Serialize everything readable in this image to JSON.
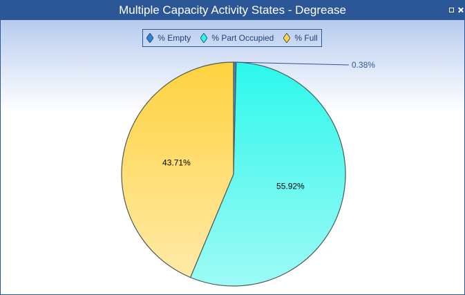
{
  "window": {
    "title": "Multiple Capacity Activity States - Degrease",
    "restore_icon": "restore-icon",
    "close_icon": "close-icon"
  },
  "chart_data": {
    "type": "pie",
    "title": "Multiple Capacity Activity States - Degrease",
    "legend_position": "top-center",
    "slices": [
      {
        "name": "% Empty",
        "value": 0.38,
        "label": "0.38%",
        "color_top": "#2f86c8",
        "color_bottom": "#7ab8e6",
        "label_style": "callout"
      },
      {
        "name": "% Part Occupied",
        "value": 55.92,
        "label": "55.92%",
        "color_top": "#2cf7ec",
        "color_bottom": "#9ffaf6",
        "label_style": "inside"
      },
      {
        "name": "% Full",
        "value": 43.71,
        "label": "43.71%",
        "color_top": "#ffd23f",
        "color_bottom": "#ffeaa8",
        "label_style": "inside"
      }
    ]
  }
}
